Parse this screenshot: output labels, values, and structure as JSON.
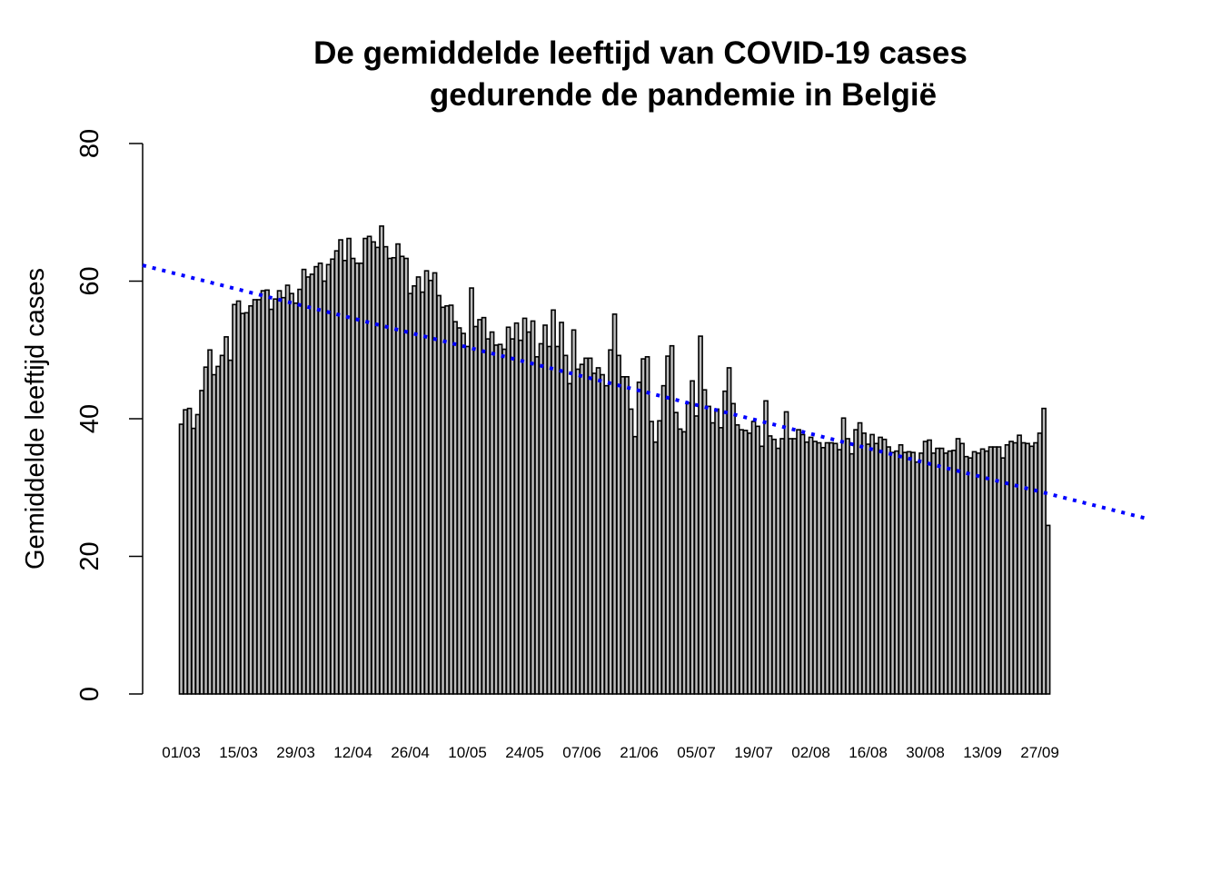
{
  "chart_data": {
    "type": "bar",
    "title_line1": "De gemiddelde leeftijd van COVID-19 cases",
    "title_line2": "gedurende de pandemie in België",
    "xlabel": "",
    "ylabel": "Gemiddelde leeftijd cases",
    "ylim": [
      0,
      80
    ],
    "yticks": [
      0,
      20,
      40,
      60,
      80
    ],
    "grid": false,
    "x_tick_labels": [
      "01/03",
      "15/03",
      "29/03",
      "12/04",
      "26/04",
      "10/05",
      "24/05",
      "07/06",
      "21/06",
      "05/07",
      "19/07",
      "02/08",
      "16/08",
      "30/08",
      "13/09",
      "27/09"
    ],
    "x_tick_interval_days": 14,
    "values": [
      39.2,
      41.3,
      41.5,
      38.6,
      40.6,
      44.1,
      47.5,
      50.0,
      46.4,
      47.6,
      49.2,
      51.9,
      48.5,
      56.6,
      57.1,
      55.3,
      55.4,
      56.4,
      57.3,
      57.3,
      58.6,
      58.7,
      55.9,
      57.4,
      58.6,
      57.6,
      59.4,
      58.2,
      56.8,
      58.8,
      61.7,
      60.6,
      61.0,
      62.1,
      62.6,
      60.0,
      62.4,
      63.2,
      64.4,
      66.0,
      63.0,
      66.2,
      63.3,
      62.6,
      62.6,
      66.2,
      66.5,
      65.7,
      64.9,
      68.0,
      65.0,
      63.3,
      63.4,
      65.4,
      63.6,
      63.3,
      58.2,
      59.3,
      60.6,
      58.4,
      61.5,
      60.1,
      61.2,
      57.9,
      56.2,
      56.4,
      56.5,
      54.1,
      53.2,
      52.4,
      50.5,
      59.0,
      53.4,
      54.4,
      54.7,
      51.6,
      52.6,
      50.7,
      50.8,
      50.1,
      53.3,
      51.6,
      53.9,
      51.4,
      54.6,
      52.6,
      54.2,
      49.0,
      50.9,
      53.6,
      50.5,
      55.8,
      50.5,
      54.0,
      49.2,
      45.1,
      52.9,
      47.2,
      47.9,
      48.8,
      48.8,
      46.6,
      47.4,
      46.4,
      44.8,
      50.0,
      55.2,
      49.2,
      46.1,
      46.1,
      41.4,
      37.4,
      45.3,
      48.7,
      49.0,
      39.6,
      36.6,
      39.7,
      44.8,
      49.1,
      50.6,
      40.9,
      38.5,
      38.1,
      42.3,
      45.5,
      40.4,
      52.0,
      44.2,
      41.8,
      39.4,
      41.4,
      38.7,
      44.0,
      47.4,
      42.2,
      39.1,
      38.4,
      38.3,
      37.9,
      39.6,
      38.9,
      36.0,
      42.6,
      37.5,
      37.0,
      35.7,
      37.1,
      41.0,
      37.1,
      37.1,
      38.4,
      37.7,
      36.6,
      37.3,
      36.7,
      36.5,
      35.8,
      36.5,
      36.5,
      36.4,
      35.5,
      40.1,
      37.1,
      34.9,
      38.4,
      39.4,
      37.9,
      36.3,
      37.7,
      36.4,
      37.3,
      37.0,
      35.9,
      35.1,
      35.3,
      36.2,
      35.1,
      35.2,
      35.1,
      33.7,
      35.0,
      36.7,
      36.9,
      35.0,
      35.7,
      35.7,
      35.0,
      35.3,
      35.4,
      37.1,
      36.4,
      34.5,
      34.3,
      35.2,
      35.0,
      35.6,
      35.3,
      35.9,
      35.9,
      35.9,
      34.3,
      36.2,
      36.7,
      36.5,
      37.6,
      36.5,
      36.4,
      36.0,
      36.5,
      37.9,
      41.5,
      24.5
    ],
    "trend_line": {
      "color": "#0000ff",
      "style": "dotted",
      "start_value": 62.3,
      "end_value": 25.4
    },
    "bar_color": "#bebebe"
  }
}
